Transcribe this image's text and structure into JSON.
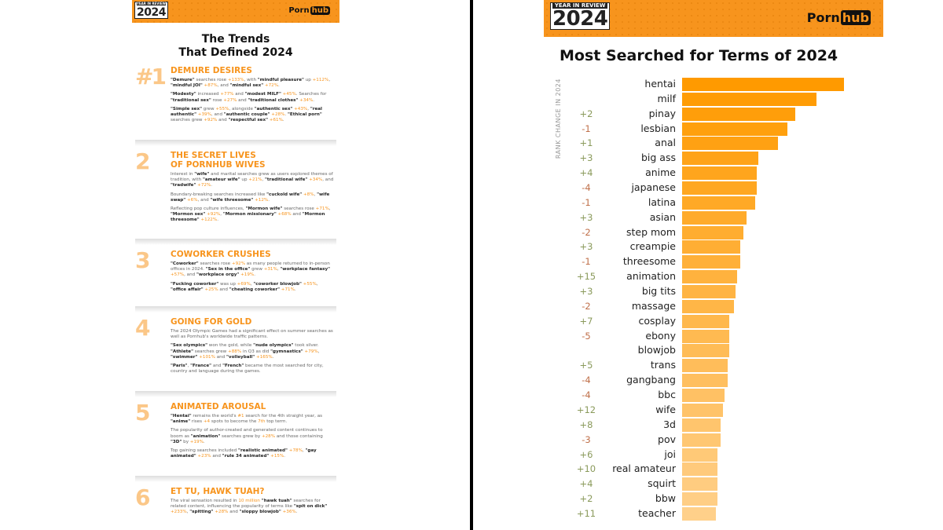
{
  "left": {
    "badge_small": "YEAR IN REVIEW",
    "badge_year": "2024",
    "logo_a": "Porn",
    "logo_b": "hub",
    "title_1": "The Trends",
    "title_2": "That Defined 2024",
    "sections": [
      {
        "num": "#1",
        "title": [
          "DEMURE DESIRES"
        ],
        "paras": [
          [
            [
              "b",
              "\"Demure\""
            ],
            [
              "n",
              " searches rose "
            ],
            [
              "h",
              "+133%"
            ],
            [
              "n",
              ", with "
            ],
            [
              "b",
              "\"mindful pleasure\""
            ],
            [
              "n",
              " up "
            ],
            [
              "h",
              "+112%"
            ],
            [
              "n",
              ", "
            ],
            [
              "b",
              "\"mindful JOI\""
            ],
            [
              "h",
              " +87%"
            ],
            [
              "n",
              ", and "
            ],
            [
              "b",
              "\"mindful sex\""
            ],
            [
              "h",
              " +72%"
            ],
            [
              "n",
              "."
            ]
          ],
          [
            [
              "b",
              "\"Modesty\""
            ],
            [
              "n",
              " increased "
            ],
            [
              "h",
              "+77%"
            ],
            [
              "n",
              " and "
            ],
            [
              "b",
              "\"modest MILF\""
            ],
            [
              "h",
              " +45%"
            ],
            [
              "n",
              ". Searches for "
            ],
            [
              "b",
              "\"traditional sex\""
            ],
            [
              "n",
              " rose "
            ],
            [
              "h",
              "+27%"
            ],
            [
              "n",
              " and "
            ],
            [
              "b",
              "\"traditional clothes\""
            ],
            [
              "h",
              " +34%"
            ],
            [
              "n",
              "."
            ]
          ],
          [
            [
              "b",
              "\"Simple sex\""
            ],
            [
              "n",
              " grew "
            ],
            [
              "h",
              "+55%"
            ],
            [
              "n",
              ", alongside "
            ],
            [
              "b",
              "\"authentic sex\""
            ],
            [
              "h",
              " +43%"
            ],
            [
              "n",
              ", "
            ],
            [
              "b",
              "\"real authentic\""
            ],
            [
              "h",
              " +39%"
            ],
            [
              "n",
              ", and "
            ],
            [
              "b",
              "\"authentic couple\""
            ],
            [
              "h",
              " +28%"
            ],
            [
              "n",
              ". "
            ],
            [
              "b",
              "\"Ethical porn\""
            ],
            [
              "n",
              " searches grew "
            ],
            [
              "h",
              "+92%"
            ],
            [
              "n",
              " and "
            ],
            [
              "b",
              "\"respectful sex\""
            ],
            [
              "h",
              " +61%"
            ],
            [
              "n",
              "."
            ]
          ]
        ]
      },
      {
        "num": "2",
        "title": [
          "THE SECRET LIVES",
          "OF PORNHUB WIVES"
        ],
        "paras": [
          [
            [
              "n",
              "Interest in "
            ],
            [
              "b",
              "\"wife\""
            ],
            [
              "n",
              " and marital searches grew as users explored themes of tradition, with "
            ],
            [
              "b",
              "\"amateur wife\""
            ],
            [
              "n",
              " up "
            ],
            [
              "h",
              "+21%"
            ],
            [
              "n",
              ", "
            ],
            [
              "b",
              "\"traditional wife\""
            ],
            [
              "h",
              " +34%"
            ],
            [
              "n",
              ", and "
            ],
            [
              "b",
              "\"tradwife\""
            ],
            [
              "h",
              " +72%"
            ],
            [
              "n",
              "."
            ]
          ],
          [
            [
              "n",
              "Boundary-breaking searches increased like "
            ],
            [
              "b",
              "\"cuckold wife\""
            ],
            [
              "h",
              " +8%"
            ],
            [
              "n",
              ", "
            ],
            [
              "b",
              "\"wife swap\""
            ],
            [
              "h",
              " +6%"
            ],
            [
              "n",
              ", and "
            ],
            [
              "b",
              "\"wife threesome\""
            ],
            [
              "h",
              " +12%"
            ],
            [
              "n",
              "."
            ]
          ],
          [
            [
              "n",
              "Reflecting pop culture influences, "
            ],
            [
              "b",
              "\"Mormon wife\""
            ],
            [
              "n",
              " searches rose "
            ],
            [
              "h",
              "+71%"
            ],
            [
              "n",
              ", "
            ],
            [
              "b",
              "\"Mormon sex\""
            ],
            [
              "h",
              " +92%"
            ],
            [
              "n",
              ", "
            ],
            [
              "b",
              "\"Mormon missionary\""
            ],
            [
              "h",
              " +68%"
            ],
            [
              "n",
              " and "
            ],
            [
              "b",
              "\"Mormon threesome\""
            ],
            [
              "h",
              " +122%"
            ],
            [
              "n",
              "."
            ]
          ]
        ]
      },
      {
        "num": "3",
        "title": [
          "COWORKER CRUSHES"
        ],
        "paras": [
          [
            [
              "b",
              "\"Coworker\""
            ],
            [
              "n",
              " searches rose "
            ],
            [
              "h",
              "+92%"
            ],
            [
              "n",
              " as many people returned to in-person offices in 2024. "
            ],
            [
              "b",
              "\"Sex in the office\""
            ],
            [
              "n",
              " grew "
            ],
            [
              "h",
              "+31%"
            ],
            [
              "n",
              ", "
            ],
            [
              "b",
              "\"workplace fantasy\""
            ],
            [
              "h",
              " +57%"
            ],
            [
              "n",
              ", and "
            ],
            [
              "b",
              "\"workplace orgy\""
            ],
            [
              "h",
              " +19%"
            ],
            [
              "n",
              "."
            ]
          ],
          [
            [
              "b",
              "\"Fucking coworker\""
            ],
            [
              "n",
              " was up "
            ],
            [
              "h",
              "+69%"
            ],
            [
              "n",
              ", "
            ],
            [
              "b",
              "\"coworker blowjob\""
            ],
            [
              "h",
              " +55%"
            ],
            [
              "n",
              ", "
            ],
            [
              "b",
              "\"office affair\""
            ],
            [
              "h",
              " +25%"
            ],
            [
              "n",
              " and "
            ],
            [
              "b",
              "\"cheating coworker\""
            ],
            [
              "h",
              " +71%"
            ],
            [
              "n",
              "."
            ]
          ]
        ]
      },
      {
        "num": "4",
        "title": [
          "GOING FOR GOLD"
        ],
        "paras": [
          [
            [
              "n",
              "The 2024 Olympic Games had a significant effect on summer searches as well as Pornhub's worldwide traffic patterns."
            ]
          ],
          [
            [
              "b",
              "\"Sex olympics\""
            ],
            [
              "n",
              " won the gold, while "
            ],
            [
              "b",
              "\"nude olympics\""
            ],
            [
              "n",
              " took silver. "
            ],
            [
              "b",
              "\"Athlete\""
            ],
            [
              "n",
              " searches grew "
            ],
            [
              "h",
              "+88%"
            ],
            [
              "n",
              " in Q3 as did "
            ],
            [
              "b",
              "\"gymnastics\""
            ],
            [
              "h",
              " +79%"
            ],
            [
              "n",
              ", "
            ],
            [
              "b",
              "\"swimmer\""
            ],
            [
              "h",
              " +101%"
            ],
            [
              "n",
              " and "
            ],
            [
              "b",
              "\"volleyball\""
            ],
            [
              "h",
              " +165%"
            ],
            [
              "n",
              "."
            ]
          ],
          [
            [
              "b",
              "\"Paris\""
            ],
            [
              "n",
              ", "
            ],
            [
              "b",
              "\"France\""
            ],
            [
              "n",
              " and "
            ],
            [
              "b",
              "\"French\""
            ],
            [
              "n",
              " became the most searched for city, country and language during the games."
            ]
          ]
        ]
      },
      {
        "num": "5",
        "title": [
          "ANIMATED AROUSAL"
        ],
        "paras": [
          [
            [
              "b",
              "\"Hentai\""
            ],
            [
              "n",
              " remains the world's "
            ],
            [
              "h",
              "#1"
            ],
            [
              "n",
              " search for the 4th straight year, as "
            ],
            [
              "b",
              "\"anime\""
            ],
            [
              "n",
              " rises "
            ],
            [
              "h",
              "+4"
            ],
            [
              "n",
              " spots to become the "
            ],
            [
              "h",
              "7th"
            ],
            [
              "n",
              " top term."
            ]
          ],
          [
            [
              "n",
              "The popularity of author-created and generated content continues to boom as "
            ],
            [
              "b",
              "\"animation\""
            ],
            [
              "n",
              " searches grew by "
            ],
            [
              "h",
              "+28%"
            ],
            [
              "n",
              " and those containing "
            ],
            [
              "b",
              "\"3D\""
            ],
            [
              "n",
              " by "
            ],
            [
              "h",
              "+19%"
            ],
            [
              "n",
              "."
            ]
          ],
          [
            [
              "n",
              "Top gaining searches included "
            ],
            [
              "b",
              "\"realistic animated\""
            ],
            [
              "h",
              " +78%"
            ],
            [
              "n",
              ", "
            ],
            [
              "b",
              "\"gay animated\""
            ],
            [
              "h",
              " +23%"
            ],
            [
              "n",
              " and "
            ],
            [
              "b",
              "\"rule 34 animated\""
            ],
            [
              "h",
              " +15%"
            ],
            [
              "n",
              "."
            ]
          ]
        ]
      },
      {
        "num": "6",
        "title": [
          "ET TU, HAWK TUAH?"
        ],
        "paras": [
          [
            [
              "n",
              "The viral sensation resulted in "
            ],
            [
              "h",
              "10 million"
            ],
            [
              "b",
              " \"hawk tuah\""
            ],
            [
              "n",
              " searches for related content, influencing the popularity of terms like "
            ],
            [
              "b",
              "\"spit on dick\""
            ],
            [
              "h",
              " +233%"
            ],
            [
              "n",
              ", "
            ],
            [
              "b",
              "\"spitting\""
            ],
            [
              "h",
              " +28%"
            ],
            [
              "n",
              " and "
            ],
            [
              "b",
              "\"sloppy blowjob\""
            ],
            [
              "h",
              " +36%"
            ],
            [
              "n",
              "."
            ]
          ]
        ]
      }
    ]
  },
  "right": {
    "badge_small": "YEAR IN REVIEW",
    "badge_year": "2024",
    "logo_a": "Porn",
    "logo_b": "hub"
  },
  "colors": {
    "up": "#8a9a5b",
    "down": "#c0704a",
    "bar_top": "#ff9a00",
    "bar_bottom": "#ffd08a",
    "accent": "#f7941d"
  },
  "chart_data": {
    "type": "bar",
    "orientation": "horizontal",
    "title": "Most Searched for Terms of 2024",
    "side_label": "RANK CHANGE IN 2024",
    "value_note": "relative bar length, hentai = 100 (estimated, unlabeled)",
    "categories": [
      "hentai",
      "milf",
      "pinay",
      "lesbian",
      "anal",
      "big ass",
      "anime",
      "japanese",
      "latina",
      "asian",
      "step mom",
      "creampie",
      "threesome",
      "animation",
      "big tits",
      "massage",
      "cosplay",
      "ebony",
      "blowjob",
      "trans",
      "gangbang",
      "bbc",
      "wife",
      "3d",
      "pov",
      "joi",
      "real amateur",
      "squirt",
      "bbw",
      "teacher"
    ],
    "rank_change": [
      "",
      "",
      "+2",
      "-1",
      "+1",
      "+3",
      "+4",
      "-4",
      "-1",
      "+3",
      "-2",
      "+3",
      "-1",
      "+15",
      "+3",
      "-2",
      "+7",
      "-5",
      "",
      "+5",
      "-4",
      "-4",
      "+12",
      "+8",
      "-3",
      "+6",
      "+10",
      "+4",
      "+2",
      "+11"
    ],
    "values": [
      100,
      83,
      70,
      65,
      59,
      47,
      46,
      46,
      45,
      40,
      38,
      36,
      36,
      34,
      33,
      32,
      29,
      29,
      29,
      28,
      28,
      26,
      25,
      24,
      24,
      22,
      22,
      22,
      22,
      21
    ]
  }
}
